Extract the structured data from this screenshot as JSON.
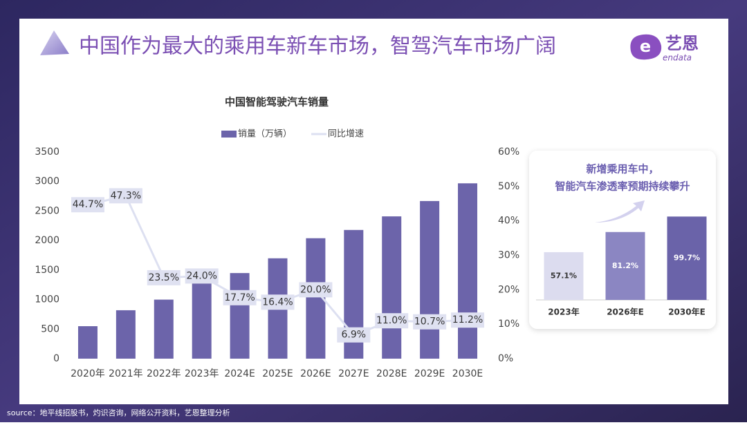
{
  "title": "中国作为最大的乘用车新车市场，智驾汽车市场广阔",
  "logo": {
    "name": "艺恩",
    "sub": "endata"
  },
  "source": "source：地平线招股书，灼识咨询，网络公开资料，艺恩整理分析",
  "chart_data": [
    {
      "type": "bar",
      "title": "中国智能驾驶汽车销量",
      "categories": [
        "2020年",
        "2021年",
        "2022年",
        "2023年",
        "2024E",
        "2025E",
        "2026E",
        "2027E",
        "2028E",
        "2029E",
        "2030E"
      ],
      "series": [
        {
          "name": "销量（万辆）",
          "type": "bar",
          "color": "#6c64aa",
          "values": [
            550,
            820,
            1000,
            1300,
            1450,
            1700,
            2040,
            2180,
            2410,
            2670,
            2970
          ]
        },
        {
          "name": "同比增速",
          "type": "line",
          "axis": "y2",
          "color": "#dde0f1",
          "values": [
            44.7,
            47.3,
            23.5,
            24.0,
            17.7,
            16.4,
            20.0,
            6.9,
            11.0,
            10.7,
            11.2
          ],
          "value_labels": [
            "44.7%",
            "47.3%",
            "23.5%",
            "24.0%",
            "17.7%",
            "16.4%",
            "20.0%",
            "6.9%",
            "11.0%",
            "10.7%",
            "11.2%"
          ]
        }
      ],
      "ylim": [
        0,
        3500
      ],
      "yticks": [
        0,
        500,
        1000,
        1500,
        2000,
        2500,
        3000,
        3500
      ],
      "y2lim": [
        0,
        60
      ],
      "y2ticks": [
        {
          "value": 0,
          "label": "0%"
        },
        {
          "value": 10,
          "label": "10%"
        },
        {
          "value": 20,
          "label": "20%"
        },
        {
          "value": 30,
          "label": "30%"
        },
        {
          "value": 40,
          "label": "40%"
        },
        {
          "value": 50,
          "label": "50%"
        },
        {
          "value": 60,
          "label": "60%"
        }
      ],
      "grid": false
    },
    {
      "type": "bar",
      "title": [
        "新增乘用车中，",
        "智能汽车渗透率预期持续攀升"
      ],
      "categories": [
        "2023年",
        "2026年E",
        "2030年E"
      ],
      "values": [
        57.1,
        81.2,
        99.7
      ],
      "value_labels": [
        "57.1%",
        "81.2%",
        "99.7%"
      ],
      "colors": [
        "#dcdcef",
        "#8b86c2",
        "#6a63a9"
      ]
    }
  ]
}
